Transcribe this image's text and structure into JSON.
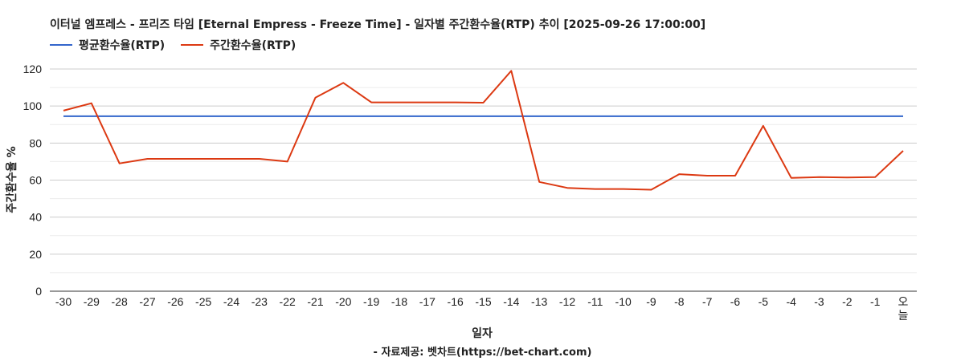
{
  "chart_data": {
    "type": "line",
    "title": "이터널 엠프레스 - 프리즈 타임 [Eternal Empress - Freeze Time] - 일자별 주간환수율(RTP) 추이 [2025-09-26 17:00:00]",
    "xlabel": "일자",
    "ylabel": "주간환수율 %",
    "ylim": [
      0,
      120
    ],
    "yticks": [
      0,
      20,
      40,
      60,
      80,
      100,
      120
    ],
    "grid": true,
    "legend_position": "top-left",
    "categories": [
      "-30",
      "-29",
      "-28",
      "-27",
      "-26",
      "-25",
      "-24",
      "-23",
      "-22",
      "-21",
      "-20",
      "-19",
      "-18",
      "-17",
      "-16",
      "-15",
      "-14",
      "-13",
      "-12",
      "-11",
      "-10",
      "-9",
      "-8",
      "-7",
      "-6",
      "-5",
      "-4",
      "-3",
      "-2",
      "-1",
      "오늘"
    ],
    "series": [
      {
        "name": "평균환수율(RTP)",
        "color": "#3366cc",
        "values": [
          94.5,
          94.5,
          94.5,
          94.5,
          94.5,
          94.5,
          94.5,
          94.5,
          94.5,
          94.5,
          94.5,
          94.5,
          94.5,
          94.5,
          94.5,
          94.5,
          94.5,
          94.5,
          94.5,
          94.5,
          94.5,
          94.5,
          94.5,
          94.5,
          94.5,
          94.5,
          94.5,
          94.5,
          94.5,
          94.5,
          94.5
        ]
      },
      {
        "name": "주간환수율(RTP)",
        "color": "#dc3912",
        "values": [
          97.5,
          101.5,
          69.0,
          71.5,
          71.5,
          71.5,
          71.5,
          71.5,
          70.0,
          104.5,
          112.5,
          102.0,
          102.0,
          102.0,
          102.0,
          101.8,
          119.0,
          59.0,
          55.8,
          55.2,
          55.2,
          54.8,
          63.2,
          62.4,
          62.4,
          89.3,
          61.2,
          61.6,
          61.4,
          61.6,
          75.8
        ]
      }
    ]
  },
  "source_note": "- 자료제공: 벳차트(https://bet-chart.com)"
}
